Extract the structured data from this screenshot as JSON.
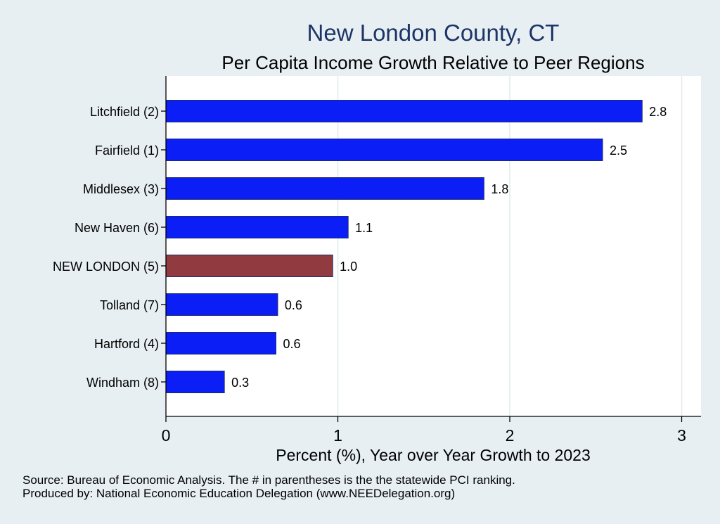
{
  "chart_data": {
    "type": "bar",
    "orientation": "horizontal",
    "title": "New London County, CT",
    "subtitle": "Per Capita Income Growth Relative to Peer Regions",
    "xlabel": "Percent (%), Year over Year Growth to 2023",
    "xlim": [
      0,
      3.1
    ],
    "xticks": [
      "0",
      "1",
      "2",
      "3"
    ],
    "categories": [
      "Litchfield  (2)",
      "Fairfield  (1)",
      "Middlesex  (3)",
      "New Haven  (6)",
      "NEW LONDON  (5)",
      "Tolland  (7)",
      "Hartford  (4)",
      "Windham  (8)"
    ],
    "values": [
      2.77,
      2.54,
      1.85,
      1.06,
      0.97,
      0.65,
      0.64,
      0.34
    ],
    "value_labels": [
      "2.8",
      "2.5",
      "1.8",
      "1.1",
      "1.0",
      "0.6",
      "0.6",
      "0.3"
    ],
    "highlight_index": 4,
    "colors": {
      "bar": "#0a1ef5",
      "highlight": "#913a3f",
      "title": "#1c3566",
      "plot_bg": "#ffffff",
      "outer_bg": "#e8eff3",
      "grid": "#e3eaee"
    }
  },
  "footer": {
    "source": "Source: Bureau of Economic Analysis. The # in parentheses is the the statewide PCI ranking.",
    "produced": "Produced by: National Economic Education Delegation (www.NEEDelegation.org)"
  }
}
